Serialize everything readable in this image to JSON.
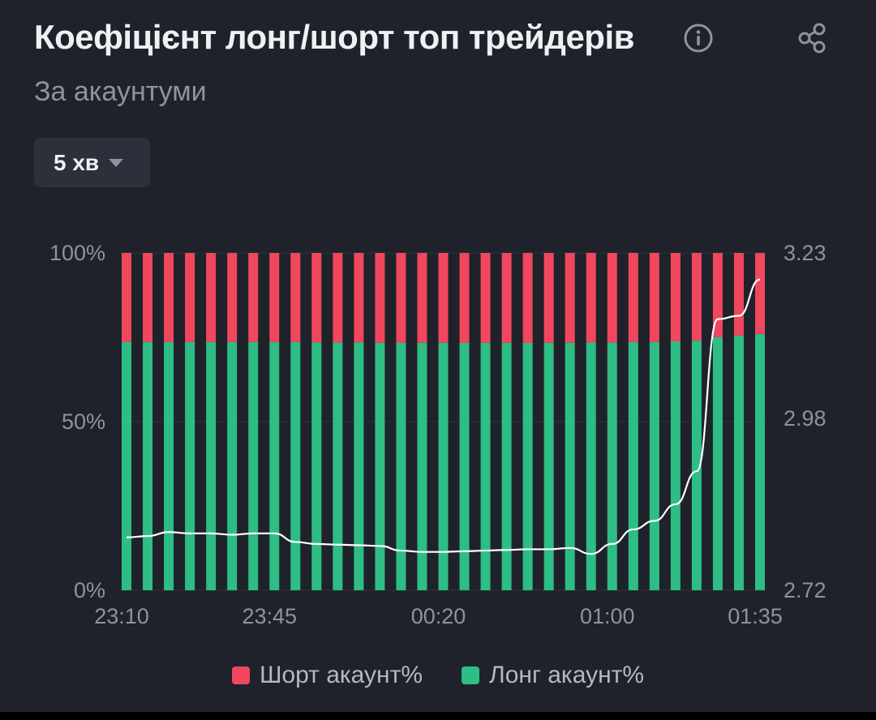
{
  "header": {
    "title": "Коефіцієнт лонг/шорт топ трейдерів",
    "subtitle": "За акаунтуми",
    "info_icon": "info-icon",
    "share_icon": "share-icon"
  },
  "interval_selector": {
    "label": "5 хв",
    "icon": "caret-down-icon"
  },
  "colors": {
    "short": "#f0475f",
    "long": "#2ebd85",
    "line": "#ffffff",
    "grid": "#2f333c"
  },
  "legend": [
    {
      "label": "Шорт акаунт%",
      "color": "#f0475f"
    },
    {
      "label": "Лонг акаунт%",
      "color": "#2ebd85"
    }
  ],
  "chart_data": {
    "type": "bar",
    "stacked": true,
    "left_axis": {
      "ticks": [
        "0%",
        "50%",
        "100%"
      ],
      "range": [
        0,
        100
      ]
    },
    "right_axis": {
      "ticks": [
        "2.72",
        "2.98",
        "3.23"
      ],
      "range": [
        2.72,
        3.23
      ]
    },
    "x_tick_labels": [
      "23:10",
      "23:45",
      "00:20",
      "01:00",
      "01:35"
    ],
    "x_tick_indices": [
      0,
      7,
      15,
      23,
      30
    ],
    "series": [
      {
        "name": "Лонг акаунт%",
        "values": [
          73.6,
          73.6,
          73.6,
          73.6,
          73.6,
          73.6,
          73.6,
          73.6,
          73.6,
          73.5,
          73.5,
          73.5,
          73.4,
          73.4,
          73.4,
          73.4,
          73.4,
          73.4,
          73.4,
          73.4,
          73.4,
          73.4,
          73.5,
          73.5,
          73.6,
          73.6,
          73.8,
          74.0,
          75.0,
          75.5,
          76.0
        ]
      },
      {
        "name": "Шорт акаунт%",
        "values": [
          26.4,
          26.4,
          26.4,
          26.4,
          26.4,
          26.4,
          26.4,
          26.4,
          26.4,
          26.5,
          26.5,
          26.5,
          26.6,
          26.6,
          26.6,
          26.6,
          26.6,
          26.6,
          26.6,
          26.6,
          26.6,
          26.6,
          26.5,
          26.5,
          26.4,
          26.4,
          26.2,
          26.0,
          25.0,
          24.5,
          24.0
        ]
      }
    ],
    "line": {
      "axis": "right",
      "values": [
        2.8,
        2.802,
        2.808,
        2.806,
        2.806,
        2.804,
        2.806,
        2.806,
        2.793,
        2.79,
        2.789,
        2.788,
        2.787,
        2.78,
        2.778,
        2.778,
        2.779,
        2.78,
        2.781,
        2.782,
        2.782,
        2.784,
        2.775,
        2.79,
        2.812,
        2.825,
        2.85,
        2.9,
        3.13,
        3.135,
        3.19
      ]
    }
  }
}
